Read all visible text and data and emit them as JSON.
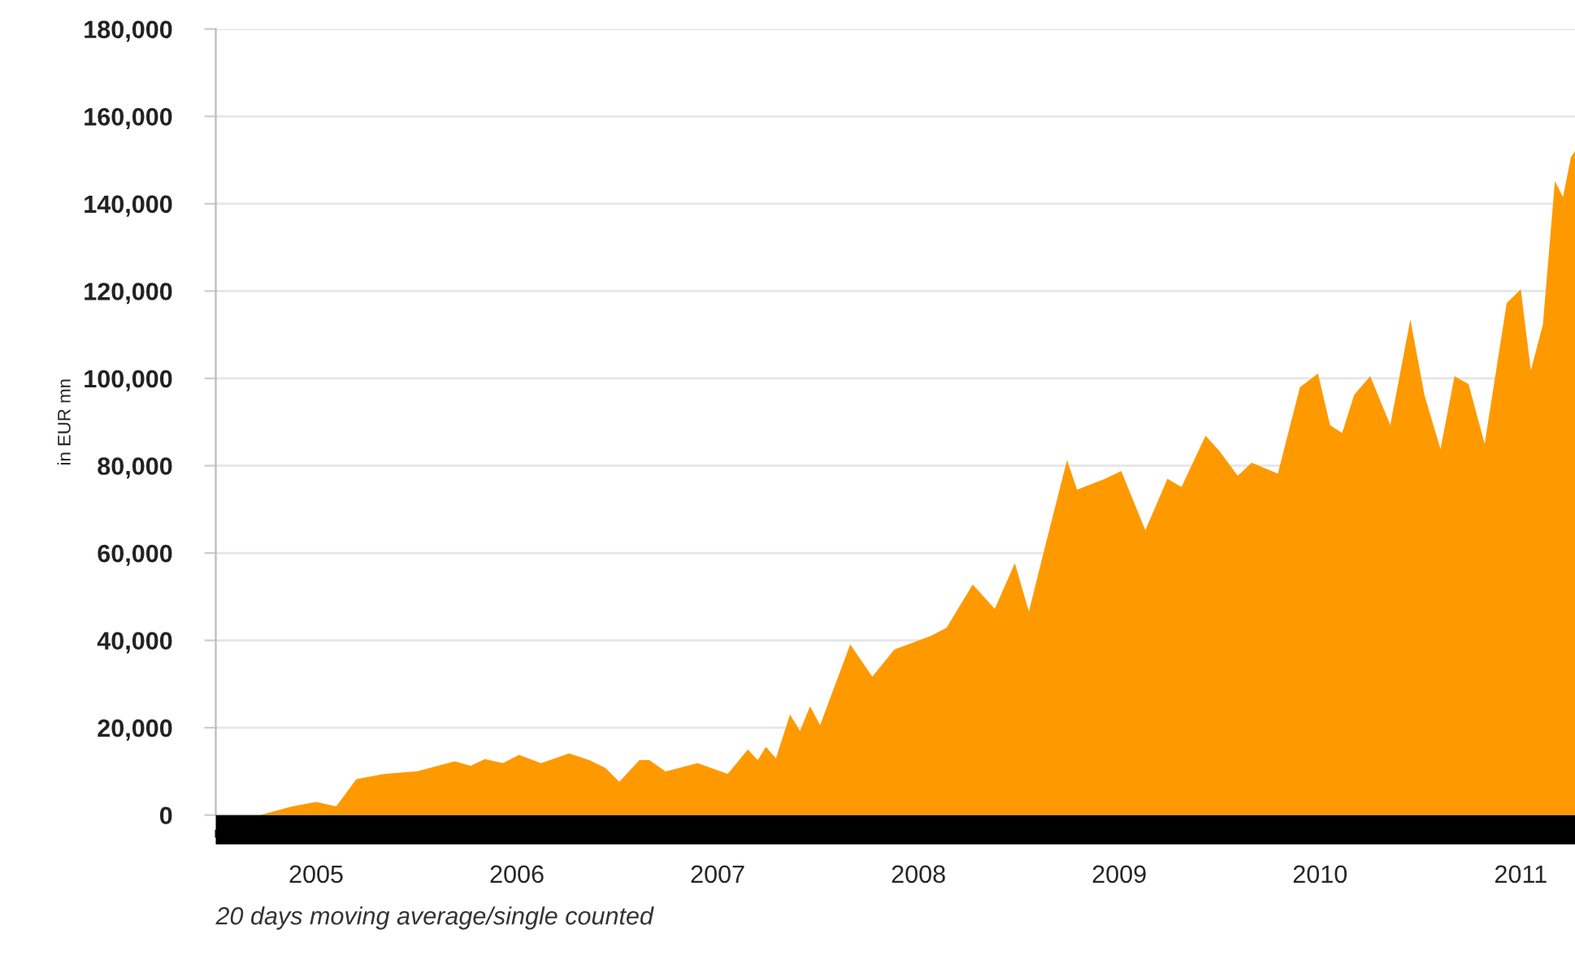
{
  "chart_data": {
    "type": "area",
    "ylabel": "in EUR mn",
    "annotations": [
      "20 days moving average/single counted"
    ],
    "x": [
      2005.22,
      2005.38,
      2005.5,
      2005.6,
      2005.7,
      2005.84,
      2006.0,
      2006.19,
      2006.27,
      2006.34,
      2006.43,
      2006.51,
      2006.62,
      2006.76,
      2006.86,
      2006.94,
      2007.01,
      2007.11,
      2007.16,
      2007.24,
      2007.4,
      2007.55,
      2007.65,
      2007.7,
      2007.74,
      2007.79,
      2007.86,
      2007.91,
      2007.96,
      2008.01,
      2008.16,
      2008.27,
      2008.38,
      2008.56,
      2008.64,
      2008.77,
      2008.88,
      2008.98,
      2009.05,
      2009.13,
      2009.24,
      2009.29,
      2009.43,
      2009.51,
      2009.63,
      2009.74,
      2009.81,
      2009.93,
      2010.0,
      2010.09,
      2010.16,
      2010.29,
      2010.4,
      2010.49,
      2010.55,
      2010.61,
      2010.67,
      2010.75,
      2010.85,
      2010.95,
      2011.02,
      2011.1,
      2011.17,
      2011.24,
      2011.32,
      2011.43,
      2011.5,
      2011.55,
      2011.61,
      2011.67,
      2011.71,
      2011.75,
      2011.77
    ],
    "series": [
      {
        "color": "#ff9900",
        "values": [
          0,
          2000,
          3000,
          2000,
          8200,
          9400,
          10000,
          12300,
          11300,
          12800,
          11900,
          13800,
          11900,
          14100,
          12600,
          10800,
          7600,
          12600,
          12600,
          10000,
          11900,
          9400,
          15000,
          12600,
          15600,
          13000,
          23000,
          19300,
          24900,
          20600,
          39100,
          31700,
          37900,
          41000,
          42900,
          52800,
          47200,
          57700,
          46600,
          61400,
          81300,
          74500,
          77000,
          78800,
          65200,
          77000,
          75100,
          86900,
          83300,
          77700,
          80700,
          78200,
          98000,
          101100,
          89300,
          87500,
          96200,
          100500,
          89300,
          113500,
          96200,
          83800,
          100500,
          98700,
          85000,
          117300,
          120400,
          101800,
          112300,
          145200,
          141500,
          150700,
          152000
        ]
      }
    ],
    "xlim": [
      2005,
      2011.77
    ],
    "xticks": [
      {
        "value": 2005,
        "label": null
      },
      {
        "value": 2005.5,
        "label": "2005"
      },
      {
        "value": 2006,
        "label": null
      },
      {
        "value": 2006.5,
        "label": "2006"
      },
      {
        "value": 2007,
        "label": null
      },
      {
        "value": 2007.5,
        "label": "2007"
      },
      {
        "value": 2008,
        "label": null
      },
      {
        "value": 2008.5,
        "label": "2008"
      },
      {
        "value": 2009,
        "label": null
      },
      {
        "value": 2009.5,
        "label": "2009"
      },
      {
        "value": 2010,
        "label": null
      },
      {
        "value": 2010.5,
        "label": "2010"
      },
      {
        "value": 2011,
        "label": null
      },
      {
        "value": 2011.5,
        "label": "2011"
      }
    ],
    "ylim": [
      0,
      180000
    ],
    "yticks": [
      {
        "value": 0,
        "label": "0"
      },
      {
        "value": 20000,
        "label": "20,000"
      },
      {
        "value": 40000,
        "label": "40,000"
      },
      {
        "value": 60000,
        "label": "60,000"
      },
      {
        "value": 80000,
        "label": "80,000"
      },
      {
        "value": 100000,
        "label": "100,000"
      },
      {
        "value": 120000,
        "label": "120,000"
      },
      {
        "value": 140000,
        "label": "140,000"
      },
      {
        "value": 160000,
        "label": "160,000"
      },
      {
        "value": 180000,
        "label": "180,000"
      }
    ],
    "grid": "y",
    "legend": false
  }
}
